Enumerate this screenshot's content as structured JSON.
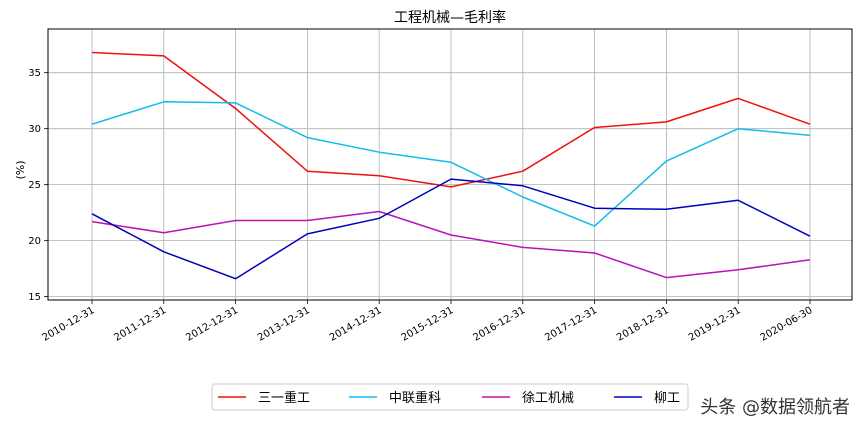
{
  "chart_data": {
    "type": "line",
    "title": "工程机械—毛利率",
    "xlabel": "",
    "ylabel": "(%)",
    "categories": [
      "2010-12-31",
      "2011-12-31",
      "2012-12-31",
      "2013-12-31",
      "2014-12-31",
      "2015-12-31",
      "2016-12-31",
      "2017-12-31",
      "2018-12-31",
      "2019-12-31",
      "2020-06-30"
    ],
    "ylim": [
      14.7,
      38.9
    ],
    "yticks": [
      15,
      20,
      25,
      30,
      35
    ],
    "grid": true,
    "legend_position": "bottom-center",
    "series": [
      {
        "name": "三一重工",
        "color": "#ee1111",
        "values": [
          36.8,
          36.5,
          31.8,
          26.2,
          25.8,
          24.8,
          26.2,
          30.1,
          30.6,
          32.7,
          30.4
        ]
      },
      {
        "name": "中联重科",
        "color": "#11bbee",
        "values": [
          30.4,
          32.4,
          32.3,
          29.2,
          27.9,
          27.0,
          23.9,
          21.3,
          27.1,
          30.0,
          29.4
        ]
      },
      {
        "name": "徐工机械",
        "color": "#bb11bb",
        "values": [
          21.7,
          20.7,
          21.8,
          21.8,
          22.6,
          20.5,
          19.4,
          18.9,
          16.7,
          17.4,
          18.3
        ]
      },
      {
        "name": "柳工",
        "color": "#0000bb",
        "values": [
          22.4,
          19.0,
          16.6,
          20.6,
          22.0,
          25.5,
          24.9,
          22.9,
          22.8,
          23.6,
          20.4
        ]
      }
    ]
  },
  "watermark": "头条 @数据领航者"
}
